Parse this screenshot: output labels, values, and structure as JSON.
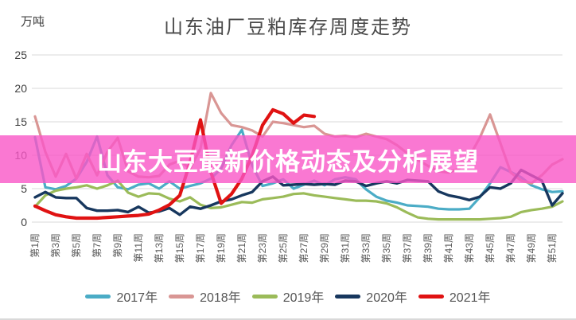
{
  "title": "山东油厂豆粕库存周度走势",
  "unit_label": "万吨",
  "overlay_banner": {
    "text": "山东大豆最新价格动态及分析展望",
    "bg_color": "#f956c7",
    "text_color": "#ffffff"
  },
  "chart_data": {
    "type": "line",
    "title": "山东油厂豆粕库存周度走势",
    "ylabel": "万吨",
    "ylim": [
      0,
      25
    ],
    "yticks": [
      0,
      5,
      10,
      15,
      20,
      25
    ],
    "grid": "horizontal",
    "legend_position": "bottom",
    "x_unit": "week",
    "x_tick_labels": [
      "第1周",
      "第3周",
      "第5周",
      "第7周",
      "第9周",
      "第11周",
      "第13周",
      "第15周",
      "第17周",
      "第19周",
      "第21周",
      "第23周",
      "第25周",
      "第27周",
      "第29周",
      "第31周",
      "第33周",
      "第35周",
      "第37周",
      "第39周",
      "第41周",
      "第43周",
      "第45周",
      "第47周",
      "第49周",
      "第51周"
    ],
    "series": [
      {
        "name": "2017年",
        "color": "#4BACC6",
        "stroke_width": 3.2,
        "values": [
          12.7,
          5.2,
          4.9,
          5.4,
          6.5,
          9.0,
          12.8,
          7.0,
          5.2,
          4.9,
          5.6,
          5.8,
          5.0,
          6.1,
          5.0,
          5.4,
          5.8,
          6.5,
          8.0,
          11.5,
          13.8,
          8.5,
          5.4,
          5.8,
          6.4,
          5.0,
          5.6,
          6.2,
          5.5,
          6.4,
          6.7,
          6.4,
          4.9,
          3.8,
          3.2,
          2.9,
          2.5,
          2.4,
          2.3,
          2.0,
          1.9,
          1.9,
          2.0,
          3.7,
          5.8,
          8.2,
          7.5,
          6.7,
          5.5,
          4.9,
          4.5,
          4.6
        ]
      },
      {
        "name": "2018年",
        "color": "#D99694",
        "stroke_width": 3.2,
        "values": [
          15.8,
          10.5,
          6.8,
          10.2,
          6.5,
          10.2,
          7.0,
          10.5,
          12.6,
          7.6,
          6.8,
          6.7,
          6.9,
          8.6,
          9.2,
          8.0,
          11.0,
          19.3,
          16.3,
          14.5,
          14.2,
          13.7,
          12.8,
          15.0,
          14.8,
          14.5,
          14.2,
          14.4,
          13.2,
          12.8,
          12.9,
          12.7,
          13.2,
          12.8,
          12.4,
          11.5,
          10.3,
          9.3,
          8.4,
          7.6,
          7.4,
          8.0,
          9.8,
          12.6,
          16.1,
          11.8,
          7.4,
          6.2,
          5.8,
          7.0,
          8.6,
          9.4
        ]
      },
      {
        "name": "2019年",
        "color": "#9BBB59",
        "stroke_width": 3.2,
        "values": [
          2.3,
          4.0,
          4.7,
          5.0,
          5.2,
          5.5,
          5.0,
          5.5,
          6.2,
          4.4,
          3.8,
          4.3,
          4.2,
          3.5,
          3.1,
          3.7,
          2.6,
          2.1,
          2.2,
          2.6,
          3.0,
          2.9,
          3.4,
          3.6,
          3.8,
          4.2,
          4.3,
          4.0,
          3.8,
          3.6,
          3.4,
          3.2,
          3.2,
          3.1,
          2.8,
          2.2,
          1.4,
          0.7,
          0.5,
          0.4,
          0.4,
          0.4,
          0.4,
          0.4,
          0.5,
          0.6,
          0.8,
          1.5,
          1.8,
          2.0,
          2.3,
          3.1
        ]
      },
      {
        "name": "2020年",
        "color": "#17375E",
        "stroke_width": 3.4,
        "values": [
          3.7,
          4.5,
          3.7,
          3.6,
          3.6,
          2.1,
          1.7,
          1.7,
          1.8,
          1.5,
          2.3,
          1.4,
          1.6,
          2.1,
          1.1,
          2.3,
          2.0,
          2.5,
          3.1,
          3.4,
          4.0,
          4.5,
          6.1,
          6.8,
          5.5,
          5.6,
          5.7,
          5.6,
          5.7,
          5.6,
          6.2,
          6.1,
          5.4,
          5.8,
          6.1,
          5.8,
          6.3,
          6.2,
          6.1,
          4.6,
          4.0,
          3.7,
          3.3,
          3.8,
          5.2,
          5.0,
          5.8,
          7.8,
          7.0,
          6.2,
          2.5,
          4.3
        ]
      },
      {
        "name": "2021年",
        "color": "#E01212",
        "stroke_width": 4.2,
        "values": [
          2.4,
          1.7,
          1.1,
          0.8,
          0.6,
          0.6,
          0.6,
          0.7,
          0.8,
          0.9,
          1.0,
          1.2,
          1.8,
          2.6,
          4.0,
          9.0,
          15.3,
          7.5,
          2.8,
          4.2,
          6.5,
          10.0,
          14.5,
          16.8,
          16.2,
          14.8,
          16.0,
          15.8
        ]
      }
    ]
  }
}
